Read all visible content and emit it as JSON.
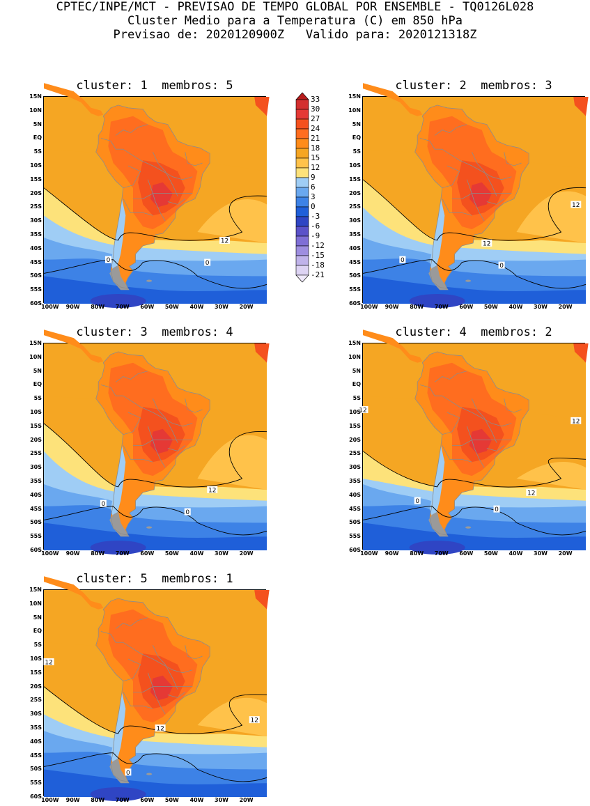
{
  "header": {
    "line1": "CPTEC/INPE/MCT - PREVISAO DE TEMPO GLOBAL POR ENSEMBLE - TQ0126L028",
    "line2": "Cluster Medio para a Temperatura (C) em 850 hPa",
    "line3": "Previsao de: 2020120900Z   Valido para: 2020121318Z"
  },
  "panels": [
    {
      "title": "cluster: 1  membros: 5",
      "contour_labels": [
        "12",
        "0",
        "0"
      ]
    },
    {
      "title": "cluster: 2  membros: 3",
      "contour_labels": [
        "12",
        "12",
        "0",
        "0"
      ]
    },
    {
      "title": "cluster: 3  membros: 4",
      "contour_labels": [
        "12",
        "0",
        "0"
      ]
    },
    {
      "title": "cluster: 4  membros: 2",
      "contour_labels": [
        "12",
        "12",
        "12",
        "0",
        "0"
      ]
    },
    {
      "title": "cluster: 5  membros: 1",
      "contour_labels": [
        "12",
        "12",
        "12",
        "0"
      ]
    }
  ],
  "lat_labels": [
    "15N",
    "10N",
    "5N",
    "EQ",
    "5S",
    "10S",
    "15S",
    "20S",
    "25S",
    "30S",
    "35S",
    "40S",
    "45S",
    "50S",
    "55S",
    "60S"
  ],
  "lon_labels": [
    "100W",
    "90W",
    "80W",
    "70W",
    "60W",
    "50W",
    "40W",
    "30W",
    "20W"
  ],
  "colorbar": {
    "labels": [
      "33",
      "30",
      "27",
      "24",
      "21",
      "18",
      "15",
      "12",
      "9",
      "6",
      "3",
      "0",
      "-3",
      "-6",
      "-9",
      "-12",
      "-15",
      "-18",
      "-21"
    ],
    "colors": [
      "#b71c1c",
      "#d32f2f",
      "#e53935",
      "#f4511e",
      "#ff6d1f",
      "#ff8c1a",
      "#f5a623",
      "#ffc24a",
      "#fde27a",
      "#9fcdf5",
      "#6aa8ef",
      "#3d82e6",
      "#1f5fd9",
      "#2f45c4",
      "#5b52c9",
      "#7f6fd6",
      "#9e8ee0",
      "#c0b3ea",
      "#ddd3f3",
      "#efe9fa"
    ]
  }
}
